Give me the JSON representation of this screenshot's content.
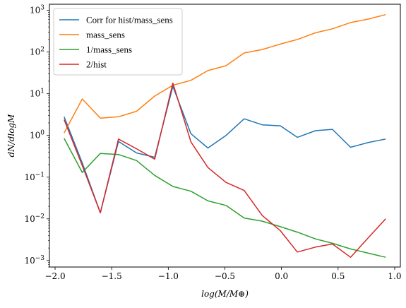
{
  "chart_data": {
    "type": "line",
    "xlabel": "log(M/M⊕)",
    "ylabel": "dN/dlogM",
    "xlim": [
      -2.05,
      1.05
    ],
    "ylim": [
      0.0007,
      1400
    ],
    "yscale": "log",
    "x_ticks": [
      -2.0,
      -1.5,
      -1.0,
      -0.5,
      0.0,
      0.5,
      1.0
    ],
    "x_tick_labels": [
      "−2.0",
      "−1.5",
      "−1.0",
      "−0.5",
      "0.0",
      "0.5",
      "1.0"
    ],
    "y_ticks": [
      0.001,
      0.01,
      0.1,
      1,
      10,
      100,
      1000
    ],
    "y_tick_labels": [
      {
        "base": "10",
        "exp": "−3"
      },
      {
        "base": "10",
        "exp": "−2"
      },
      {
        "base": "10",
        "exp": "−1"
      },
      {
        "base": "10",
        "exp": "0"
      },
      {
        "base": "10",
        "exp": "1"
      },
      {
        "base": "10",
        "exp": "2"
      },
      {
        "base": "10",
        "exp": "3"
      }
    ],
    "legend_position": "upper-left",
    "x": [
      -1.92,
      -1.76,
      -1.6,
      -1.44,
      -1.28,
      -1.12,
      -0.96,
      -0.8,
      -0.65,
      -0.49,
      -0.33,
      -0.17,
      -0.01,
      0.14,
      0.3,
      0.45,
      0.61,
      0.77,
      0.92
    ],
    "series": [
      {
        "name": "Corr for hist/mass_sens",
        "color": "#1f77b4",
        "values": [
          2.8,
          0.22,
          0.014,
          0.72,
          0.38,
          0.3,
          15,
          1.1,
          0.5,
          1.0,
          2.5,
          1.8,
          1.7,
          0.9,
          1.3,
          1.4,
          0.52,
          0.68,
          0.82
        ]
      },
      {
        "name": "mass_sens",
        "color": "#ff7f0e",
        "values": [
          1.15,
          7.5,
          2.6,
          2.8,
          3.8,
          8.8,
          16,
          21,
          36,
          47,
          95,
          115,
          155,
          200,
          290,
          360,
          510,
          620,
          790
        ]
      },
      {
        "name": "1/mass_sens",
        "color": "#2ca02c",
        "values": [
          0.85,
          0.13,
          0.37,
          0.35,
          0.25,
          0.11,
          0.06,
          0.046,
          0.027,
          0.021,
          0.0105,
          0.0088,
          0.0065,
          0.0048,
          0.0033,
          0.0026,
          0.0019,
          0.0015,
          0.0012
        ]
      },
      {
        "name": "2/hist",
        "color": "#d62728",
        "values": [
          2.4,
          0.19,
          0.014,
          0.82,
          0.48,
          0.27,
          18,
          0.7,
          0.17,
          0.075,
          0.048,
          0.012,
          0.0052,
          0.0016,
          0.0021,
          0.0025,
          0.0012,
          0.0036,
          0.01
        ]
      }
    ]
  }
}
